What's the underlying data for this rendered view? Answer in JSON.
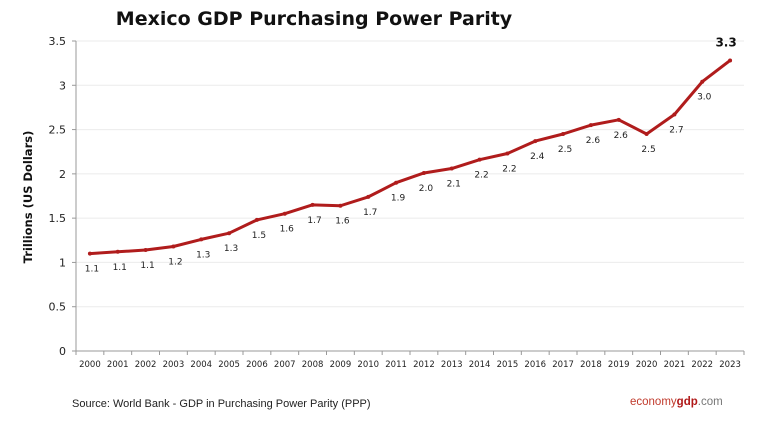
{
  "chart_data": {
    "type": "line",
    "title": "Mexico GDP Purchasing Power Parity",
    "ylabel": "Trillions (US Dollars)",
    "xlabel": "",
    "ylim": [
      0,
      3.5
    ],
    "yticks": [
      "0",
      "0.5",
      "1",
      "1.5",
      "2",
      "2.5",
      "3",
      "3.5"
    ],
    "grid": true,
    "line_color": "#b01c1c",
    "categories": [
      "2000",
      "2001",
      "2002",
      "2003",
      "2004",
      "2005",
      "2006",
      "2007",
      "2008",
      "2009",
      "2010",
      "2011",
      "2012",
      "2013",
      "2014",
      "2015",
      "2016",
      "2017",
      "2018",
      "2019",
      "2020",
      "2021",
      "2022",
      "2023"
    ],
    "values": [
      1.1,
      1.12,
      1.14,
      1.18,
      1.26,
      1.33,
      1.48,
      1.55,
      1.65,
      1.64,
      1.74,
      1.9,
      2.01,
      2.06,
      2.16,
      2.23,
      2.37,
      2.45,
      2.55,
      2.61,
      2.45,
      2.67,
      3.04,
      3.28
    ],
    "data_labels": [
      "1.1",
      "1.1",
      "1.1",
      "1.2",
      "1.3",
      "1.3",
      "1.5",
      "1.6",
      "1.7",
      "1.6",
      "1.7",
      "1.9",
      "2.0",
      "2.1",
      "2.2",
      "2.2",
      "2.4",
      "2.5",
      "2.6",
      "2.6",
      "2.5",
      "2.7",
      "3.0",
      "3.3"
    ]
  },
  "source": "Source:  World Bank -  GDP  in Purchasing Power Parity (PPP)",
  "logo": {
    "part1": "economy",
    "part2": "gdp",
    "part3": ".com"
  }
}
